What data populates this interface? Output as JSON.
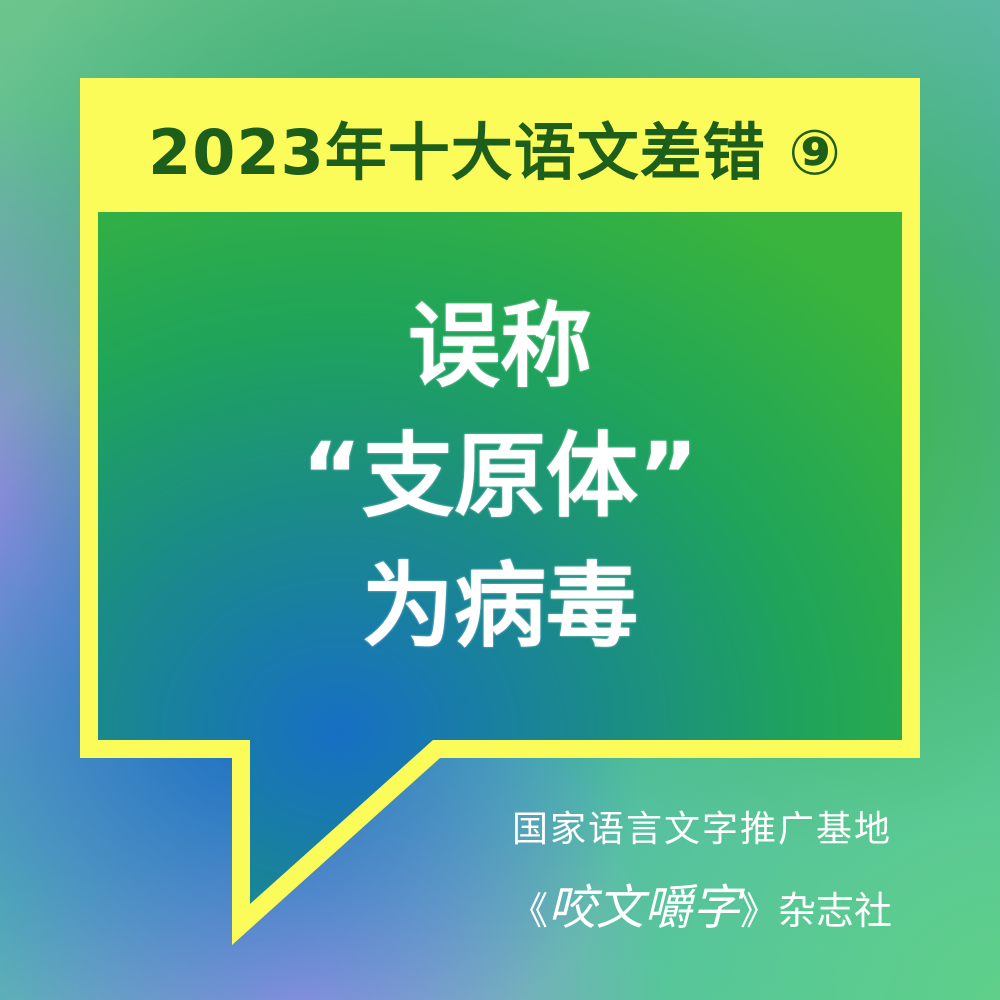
{
  "header": {
    "title": "2023年十大语文差错 ⑨"
  },
  "main": {
    "lines": [
      "误称",
      "“支原体”",
      "为病毒"
    ]
  },
  "publisher": {
    "line1": "国家语言文字推广基地",
    "line2_open": "《",
    "line2_brand": "咬文嚼字",
    "line2_close": "》杂志社"
  },
  "colors": {
    "frame_yellow": "#fbfb5a",
    "header_text_green": "#1d5e1a",
    "main_text": "#ffffff"
  }
}
